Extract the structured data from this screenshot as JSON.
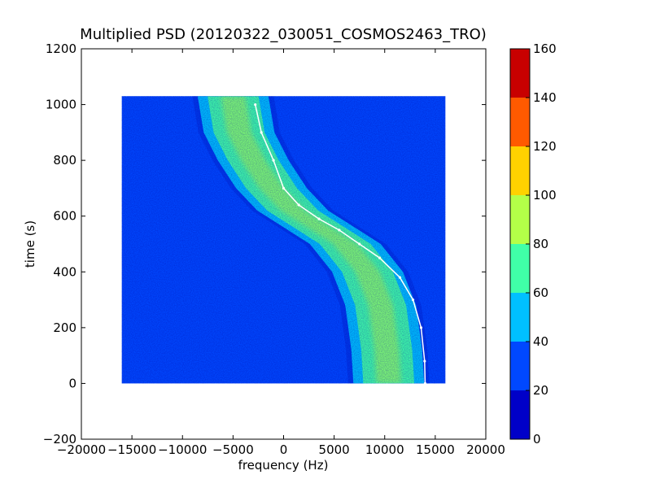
{
  "chart_data": {
    "type": "heatmap",
    "title": "Multiplied PSD (20120322_030051_COSMOS2463_TRO)",
    "xlabel": "frequency (Hz)",
    "ylabel": "time (s)",
    "xlim": [
      -20000,
      20000
    ],
    "ylim": [
      -200,
      1200
    ],
    "x_ticks": [
      -20000,
      -15000,
      -10000,
      -5000,
      0,
      5000,
      10000,
      15000,
      20000
    ],
    "x_tick_labels": [
      "−20000",
      "−15000",
      "−10000",
      "−5000",
      "0",
      "5000",
      "10000",
      "15000",
      "20000"
    ],
    "y_ticks": [
      -200,
      0,
      200,
      400,
      600,
      800,
      1000,
      1200
    ],
    "y_tick_labels": [
      "−200",
      "0",
      "200",
      "400",
      "600",
      "800",
      "1000",
      "1200"
    ],
    "data_extent": {
      "freq": [
        -16000,
        16000
      ],
      "time": [
        0,
        1030
      ]
    },
    "colorbar": {
      "range": [
        0,
        160
      ],
      "ticks": [
        0,
        20,
        40,
        60,
        80,
        100,
        120,
        140,
        160
      ],
      "tick_labels": [
        "0",
        "20",
        "40",
        "60",
        "80",
        "100",
        "120",
        "140",
        "160"
      ],
      "bands": [
        {
          "from": 0,
          "to": 20,
          "color": "#0000c8"
        },
        {
          "from": 20,
          "to": 40,
          "color": "#0048ff"
        },
        {
          "from": 40,
          "to": 60,
          "color": "#00c0ff"
        },
        {
          "from": 60,
          "to": 80,
          "color": "#40ffa8"
        },
        {
          "from": 80,
          "to": 100,
          "color": "#b4ff48"
        },
        {
          "from": 100,
          "to": 120,
          "color": "#ffd200"
        },
        {
          "from": 120,
          "to": 140,
          "color": "#ff5a00"
        },
        {
          "from": 140,
          "to": 160,
          "color": "#c80000"
        }
      ]
    },
    "background_level_color": "#0048ff",
    "signal_trace": {
      "description_units": "freq Hz vs time s",
      "freq": [
        -2800,
        -2200,
        -1000,
        0,
        1500,
        3500,
        5500,
        7500,
        9500,
        11500,
        12800,
        13600,
        13950,
        14000
      ],
      "time": [
        1000,
        900,
        800,
        700,
        640,
        590,
        550,
        500,
        450,
        380,
        300,
        200,
        80,
        0
      ],
      "color": "#ffffff"
    },
    "main_band": {
      "center_freq": [
        -5000,
        -4400,
        -3000,
        -1200,
        900,
        3500,
        6100,
        8300,
        9600,
        10200,
        10400
      ],
      "time": [
        1030,
        900,
        800,
        700,
        620,
        560,
        500,
        400,
        280,
        120,
        0
      ],
      "half_width_hz": 3500,
      "core_color": "#b4ff48",
      "mid_color": "#40ffa8",
      "edge_color": "#00c0ff"
    }
  }
}
